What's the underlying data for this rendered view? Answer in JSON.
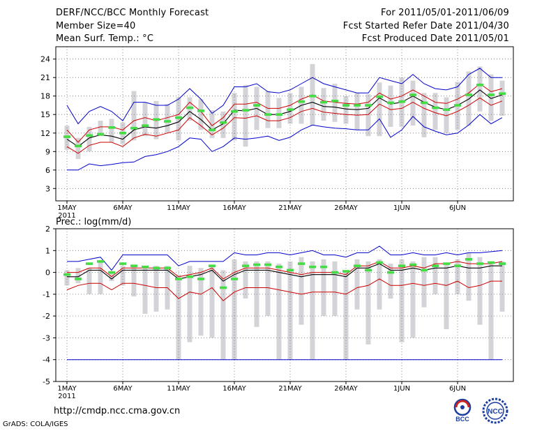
{
  "header": {
    "title": "DERF/NCC/BCC Monthly Forecast",
    "member_size": "Member Size=40",
    "variable": "Mean Surf. Temp.: °C",
    "period": "For 2011/05/01-2011/06/09",
    "started": "Fcst Started Refer Date 2011/04/30",
    "produced": "Fcst Produced Date 2011/05/01"
  },
  "footer": {
    "url": "http://cmdp.ncc.cma.gov.cn",
    "grads": "GrADS: COLA/IGES",
    "logo_left": "BCC",
    "logo_right": "NCC"
  },
  "colors": {
    "envelope": "#0000cc",
    "spread": "#cc0000",
    "mean": "#000000",
    "observed": "#44dd44",
    "bar": "#d4d4d8",
    "grid": "#777777"
  },
  "chart_data": [
    {
      "type": "line",
      "title": "Mean Surf. Temp.: °C",
      "x_tick_labels": [
        "1MAY",
        "6MAY",
        "11MAY",
        "16MAY",
        "21MAY",
        "26MAY",
        "1JUN",
        "6JUN"
      ],
      "x_year_label": "2011",
      "y_ticks": [
        3,
        6,
        9,
        12,
        15,
        18,
        21,
        24
      ],
      "ylim": [
        1,
        26
      ],
      "days": 40,
      "series": [
        {
          "name": "max envelope",
          "values": [
            16.5,
            13.5,
            15.5,
            16.3,
            15.5,
            14.0,
            17.0,
            17.0,
            16.5,
            16.5,
            17.5,
            19.2,
            17.5,
            15.2,
            16.5,
            19.5,
            19.5,
            20.0,
            18.7,
            18.5,
            19.0,
            20.0,
            21.0,
            20.0,
            19.5,
            19.0,
            18.5,
            18.5,
            21.0,
            20.5,
            20.0,
            21.5,
            20.0,
            19.2,
            19.0,
            19.5,
            21.5,
            22.5,
            21.0,
            21.0
          ]
        },
        {
          "name": "upper spread",
          "values": [
            12.5,
            10.5,
            12.5,
            13.0,
            13.0,
            12.5,
            14.0,
            14.5,
            14.0,
            14.5,
            15.0,
            17.0,
            15.5,
            13.2,
            14.5,
            16.7,
            16.7,
            17.0,
            16.0,
            16.0,
            16.5,
            17.5,
            18.2,
            17.2,
            17.0,
            16.8,
            16.7,
            17.0,
            18.5,
            17.5,
            18.0,
            19.0,
            18.0,
            17.0,
            16.8,
            17.5,
            18.5,
            20.0,
            18.7,
            19.2
          ]
        },
        {
          "name": "ensemble mean",
          "values": [
            11.0,
            9.8,
            11.2,
            11.7,
            11.5,
            11.0,
            12.5,
            13.0,
            12.8,
            13.2,
            13.8,
            15.5,
            14.2,
            12.5,
            13.5,
            15.7,
            15.6,
            16.0,
            15.0,
            15.0,
            15.5,
            16.5,
            17.0,
            16.3,
            16.2,
            15.9,
            15.8,
            16.0,
            17.7,
            16.7,
            17.0,
            18.0,
            17.0,
            16.2,
            15.8,
            16.5,
            17.5,
            19.0,
            17.6,
            18.2
          ]
        },
        {
          "name": "lower spread",
          "values": [
            9.8,
            8.7,
            10.0,
            10.5,
            10.5,
            9.8,
            11.2,
            11.8,
            11.5,
            12.0,
            12.5,
            14.5,
            13.2,
            11.7,
            12.8,
            14.5,
            14.4,
            14.8,
            14.0,
            14.0,
            14.5,
            15.5,
            16.0,
            15.4,
            15.2,
            15.0,
            14.9,
            15.0,
            16.7,
            15.8,
            16.0,
            17.0,
            16.0,
            15.3,
            14.8,
            15.5,
            16.5,
            17.7,
            16.5,
            17.2
          ]
        },
        {
          "name": "min envelope",
          "values": [
            6.0,
            6.0,
            7.0,
            6.7,
            6.9,
            7.2,
            7.3,
            8.2,
            8.5,
            9.0,
            9.8,
            11.2,
            11.0,
            9.0,
            9.8,
            11.2,
            11.0,
            11.2,
            11.5,
            10.8,
            11.3,
            12.5,
            13.3,
            13.0,
            12.8,
            12.7,
            12.5,
            12.5,
            14.3,
            11.3,
            12.5,
            14.7,
            13.0,
            12.3,
            11.7,
            12.0,
            13.3,
            15.0,
            13.5,
            14.5
          ]
        },
        {
          "name": "observed",
          "values": [
            11.4,
            9.9,
            11.6,
            11.8,
            12.9,
            12.0,
            12.8,
            13.2,
            14.2,
            13.9,
            14.5,
            16.1,
            15.6,
            12.5,
            13.7,
            15.5,
            15.7,
            16.5,
            15.0,
            15.0,
            15.8,
            17.1,
            18.0,
            17.0,
            17.2,
            16.5,
            16.5,
            16.5,
            17.9,
            16.9,
            17.1,
            18.2,
            16.9,
            16.1,
            15.8,
            16.5,
            18.2,
            19.8,
            18.2,
            18.4
          ]
        },
        {
          "name": "bar top",
          "values": [
            13.2,
            11.2,
            13.0,
            14.0,
            14.3,
            13.7,
            18.8,
            17.0,
            17.2,
            16.7,
            17.8,
            17.8,
            17.5,
            15.7,
            15.5,
            18.5,
            19.8,
            19.5,
            18.8,
            17.7,
            18.5,
            19.5,
            23.2,
            19.3,
            20.0,
            18.0,
            18.5,
            18.3,
            20.2,
            19.7,
            21.0,
            20.5,
            18.5,
            18.5,
            17.8,
            20.3,
            22.0,
            22.8,
            21.5,
            20.5
          ]
        },
        {
          "name": "bar bottom",
          "values": [
            9.3,
            7.8,
            9.0,
            11.5,
            10.5,
            10.2,
            10.8,
            11.5,
            11.0,
            12.0,
            10.8,
            14.0,
            12.5,
            11.2,
            11.2,
            10.8,
            9.8,
            12.5,
            12.8,
            12.8,
            13.5,
            13.5,
            13.2,
            14.0,
            13.8,
            13.5,
            12.5,
            11.5,
            11.5,
            13.0,
            13.0,
            13.2,
            11.3,
            12.5,
            12.0,
            12.5,
            13.2,
            15.5,
            14.0,
            14.8
          ]
        }
      ]
    },
    {
      "type": "line",
      "title": "Prec.: log(mm/d)",
      "x_tick_labels": [
        "1MAY",
        "6MAY",
        "11MAY",
        "16MAY",
        "21MAY",
        "26MAY",
        "1JUN",
        "6JUN"
      ],
      "x_year_label": "2011",
      "y_ticks": [
        -5,
        -4,
        -3,
        -2,
        -1,
        0,
        1,
        2
      ],
      "ylim": [
        -5,
        2
      ],
      "days": 40,
      "series": [
        {
          "name": "max envelope",
          "values": [
            0.5,
            0.5,
            0.6,
            0.7,
            0.1,
            0.8,
            0.8,
            0.8,
            0.8,
            0.8,
            0.3,
            0.5,
            0.5,
            0.5,
            0.5,
            0.9,
            0.8,
            0.8,
            0.9,
            0.9,
            0.8,
            0.9,
            1.0,
            0.8,
            0.8,
            0.7,
            0.9,
            0.9,
            1.2,
            0.8,
            0.8,
            0.9,
            0.8,
            0.8,
            0.9,
            0.8,
            0.9,
            0.9,
            0.95,
            1.0
          ]
        },
        {
          "name": "upper spread",
          "values": [
            0.0,
            0.0,
            0.2,
            0.2,
            -0.2,
            0.2,
            0.2,
            0.2,
            0.2,
            0.2,
            -0.2,
            -0.1,
            0.0,
            0.2,
            -0.3,
            0.0,
            0.2,
            0.2,
            0.2,
            0.1,
            0.0,
            -0.1,
            0.0,
            0.0,
            0.0,
            -0.1,
            0.3,
            0.3,
            0.5,
            0.2,
            0.2,
            0.3,
            0.2,
            0.4,
            0.4,
            0.5,
            0.4,
            0.4,
            0.4,
            0.5
          ]
        },
        {
          "name": "ensemble mean",
          "values": [
            -0.2,
            -0.2,
            0.1,
            0.1,
            -0.3,
            0.1,
            0.1,
            0.1,
            0.1,
            0.1,
            -0.3,
            -0.2,
            -0.1,
            0.1,
            -0.4,
            -0.1,
            0.1,
            0.1,
            0.1,
            0.0,
            -0.1,
            -0.2,
            -0.1,
            -0.1,
            -0.1,
            -0.2,
            0.2,
            0.2,
            0.4,
            0.1,
            0.1,
            0.2,
            0.1,
            0.2,
            0.2,
            0.3,
            0.2,
            0.2,
            0.3,
            0.3
          ]
        },
        {
          "name": "lower spread",
          "values": [
            -0.8,
            -0.6,
            -0.5,
            -0.5,
            -0.8,
            -0.5,
            -0.5,
            -0.6,
            -0.7,
            -0.7,
            -1.2,
            -0.9,
            -1.0,
            -0.7,
            -1.3,
            -0.9,
            -0.7,
            -0.7,
            -0.7,
            -0.8,
            -0.9,
            -1.0,
            -0.9,
            -0.9,
            -0.9,
            -1.0,
            -0.7,
            -0.6,
            -0.3,
            -0.6,
            -0.6,
            -0.5,
            -0.6,
            -0.5,
            -0.6,
            -0.4,
            -0.7,
            -0.6,
            -0.4,
            -0.4
          ]
        },
        {
          "name": "min envelope",
          "values": [
            -4.0,
            -4.0,
            -4.0,
            -4.0,
            -4.0,
            -4.0,
            -4.0,
            -4.0,
            -4.0,
            -4.0,
            -4.0,
            -4.0,
            -4.0,
            -4.0,
            -4.0,
            -4.0,
            -4.0,
            -4.0,
            -4.0,
            -4.0,
            -4.0,
            -4.0,
            -4.0,
            -4.0,
            -4.0,
            -4.0,
            -4.0,
            -4.0,
            -4.0,
            -4.0,
            -4.0,
            -4.0,
            -4.0,
            -4.0,
            -4.0,
            -4.0,
            -4.0,
            -4.0,
            -4.0,
            -4.0
          ]
        },
        {
          "name": "observed",
          "values": [
            -0.1,
            -0.3,
            0.4,
            0.5,
            0.0,
            0.4,
            0.3,
            0.25,
            0.2,
            0.2,
            -0.3,
            -0.2,
            -0.3,
            0.3,
            -0.7,
            -0.3,
            0.3,
            0.35,
            0.35,
            0.25,
            0.1,
            0.4,
            0.25,
            0.25,
            0.0,
            0.05,
            0.3,
            0.1,
            0.45,
            0.0,
            0.3,
            0.35,
            0.1,
            0.3,
            0.4,
            0.3,
            0.6,
            0.4,
            0.45,
            0.4
          ]
        },
        {
          "name": "bar top",
          "values": [
            0.1,
            0.2,
            0.2,
            0.5,
            0.0,
            0.3,
            0.3,
            0.3,
            0.3,
            0.3,
            -0.1,
            0.3,
            0.2,
            0.3,
            0.1,
            0.6,
            0.5,
            0.5,
            0.5,
            0.4,
            0.5,
            0.7,
            0.5,
            0.6,
            0.5,
            0.1,
            0.6,
            0.5,
            0.6,
            0.4,
            0.6,
            0.5,
            0.7,
            0.7,
            0.4,
            0.6,
            0.9,
            0.7,
            0.5,
            0.5
          ]
        },
        {
          "name": "bar bottom",
          "values": [
            -0.6,
            -0.5,
            -1.0,
            -1.0,
            -0.4,
            -0.6,
            -1.1,
            -1.9,
            -1.8,
            -1.7,
            -4.0,
            -3.2,
            -2.9,
            -3.0,
            -4.0,
            -4.0,
            -1.2,
            -2.5,
            -2.0,
            -4.0,
            -4.0,
            -2.4,
            -4.0,
            -2.0,
            -2.0,
            -4.0,
            -1.7,
            -3.3,
            -1.7,
            -1.2,
            -3.2,
            -3.0,
            -1.6,
            -1.0,
            -2.6,
            -1.0,
            -1.3,
            -2.4,
            -4.0,
            -1.8
          ]
        }
      ]
    }
  ]
}
